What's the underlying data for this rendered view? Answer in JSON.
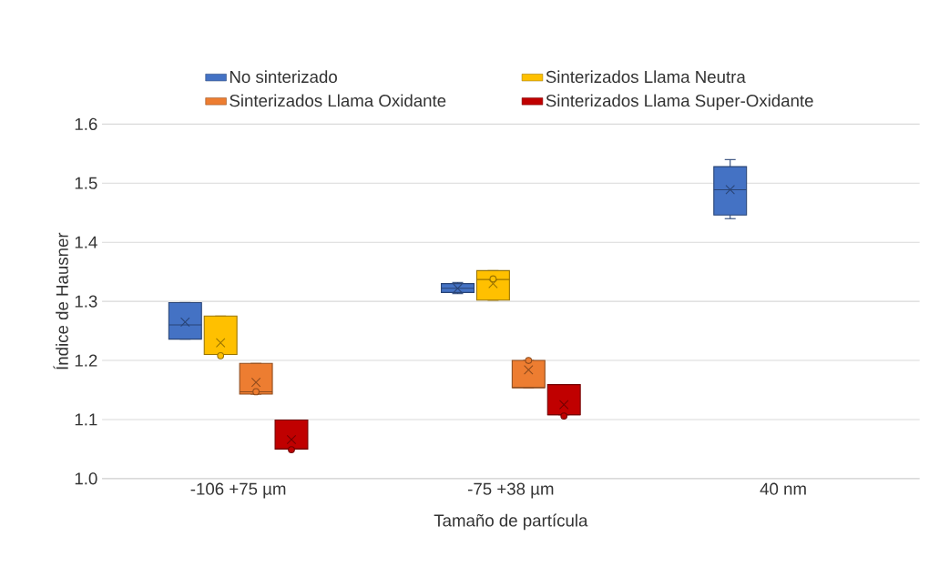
{
  "chart_data": {
    "type": "box",
    "xlabel": "Tamaño de partícula",
    "ylabel": "Índice de Hausner",
    "categories": [
      "-106 +75 µm",
      "-75 +38 µm",
      "40 nm"
    ],
    "ylim": [
      1.0,
      1.6
    ],
    "yticks": [
      {
        "value": 1.0,
        "label": "1.0"
      },
      {
        "value": 1.1,
        "label": "1.1"
      },
      {
        "value": 1.2,
        "label": "1.2"
      },
      {
        "value": 1.3,
        "label": "1.3"
      },
      {
        "value": 1.4,
        "label": "1.4"
      },
      {
        "value": 1.5,
        "label": "1.5"
      },
      {
        "value": 1.6,
        "label": "1.6"
      }
    ],
    "grid": "y",
    "legend": "top",
    "marker": "cross",
    "series": [
      {
        "name": "No sinterizado",
        "color": "#4472c4",
        "boxes": [
          {
            "low": 1.236,
            "q1": 1.236,
            "median": 1.26,
            "q3": 1.298,
            "high": 1.298,
            "mean": 1.265
          },
          {
            "low": 1.313,
            "q1": 1.315,
            "median": 1.322,
            "q3": 1.33,
            "high": 1.332,
            "mean": 1.322
          },
          {
            "low": 1.44,
            "q1": 1.446,
            "median": 1.489,
            "q3": 1.528,
            "high": 1.54,
            "mean": 1.489
          }
        ]
      },
      {
        "name": "Sinterizados Llama Neutra",
        "color": "#ffc000",
        "boxes": [
          {
            "low": 1.21,
            "q1": 1.21,
            "median": 1.21,
            "q3": 1.275,
            "high": 1.275,
            "mean": 1.23,
            "outliers": [
              1.208
            ]
          },
          {
            "low": 1.302,
            "q1": 1.302,
            "median": 1.337,
            "q3": 1.352,
            "high": 1.352,
            "mean": 1.33,
            "outliers": [
              1.338
            ]
          },
          null
        ]
      },
      {
        "name": "Sinterizados Llama Oxidante",
        "color": "#ed7d31",
        "boxes": [
          {
            "low": 1.143,
            "q1": 1.143,
            "median": 1.147,
            "q3": 1.195,
            "high": 1.195,
            "mean": 1.163,
            "outliers": [
              1.147
            ]
          },
          {
            "low": 1.154,
            "q1": 1.154,
            "median": 1.154,
            "q3": 1.2,
            "high": 1.2,
            "mean": 1.184,
            "outliers": [
              1.2
            ]
          },
          null
        ]
      },
      {
        "name": "Sinterizados Llama Super-Oxidante",
        "color": "#c00000",
        "boxes": [
          {
            "low": 1.05,
            "q1": 1.05,
            "median": 1.05,
            "q3": 1.099,
            "high": 1.099,
            "mean": 1.066,
            "outliers": [
              1.049
            ]
          },
          {
            "low": 1.108,
            "q1": 1.108,
            "median": 1.108,
            "q3": 1.159,
            "high": 1.159,
            "mean": 1.125,
            "outliers": [
              1.106
            ]
          },
          null
        ]
      }
    ]
  }
}
